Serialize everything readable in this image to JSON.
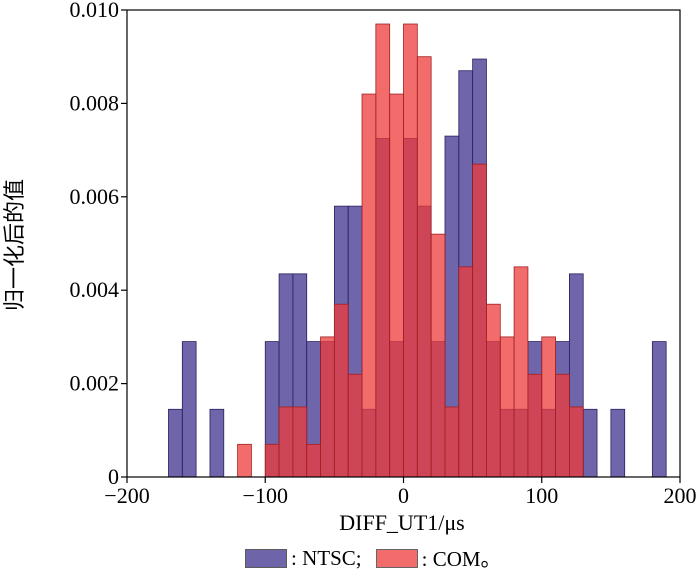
{
  "chart_data": {
    "type": "bar",
    "title": "",
    "xlabel": "DIFF_UT1/μs",
    "ylabel": "归一化后的值",
    "xlim": [
      -200,
      200
    ],
    "ylim": [
      0,
      0.01
    ],
    "xticks": [
      "−200",
      "−100",
      "0",
      "100",
      "200"
    ],
    "yticks": [
      "0",
      "0.002",
      "0.004",
      "0.006",
      "0.008",
      "0.010"
    ],
    "bin_width": 10,
    "series": [
      {
        "name": "NTSC",
        "color": "#4b3e96",
        "bins": [
          {
            "x0": -170,
            "value": 0.00145
          },
          {
            "x0": -160,
            "value": 0.0029
          },
          {
            "x0": -140,
            "value": 0.00145
          },
          {
            "x0": -100,
            "value": 0.0029
          },
          {
            "x0": -90,
            "value": 0.00435
          },
          {
            "x0": -80,
            "value": 0.00435
          },
          {
            "x0": -70,
            "value": 0.0029
          },
          {
            "x0": -60,
            "value": 0.0029
          },
          {
            "x0": -50,
            "value": 0.0058
          },
          {
            "x0": -40,
            "value": 0.0058
          },
          {
            "x0": -30,
            "value": 0.00145
          },
          {
            "x0": -20,
            "value": 0.00725
          },
          {
            "x0": -10,
            "value": 0.0029
          },
          {
            "x0": 0,
            "value": 0.00725
          },
          {
            "x0": 10,
            "value": 0.0058
          },
          {
            "x0": 20,
            "value": 0.0029
          },
          {
            "x0": 30,
            "value": 0.0073
          },
          {
            "x0": 40,
            "value": 0.0087
          },
          {
            "x0": 50,
            "value": 0.00895
          },
          {
            "x0": 60,
            "value": 0.0029
          },
          {
            "x0": 70,
            "value": 0.00145
          },
          {
            "x0": 80,
            "value": 0.00145
          },
          {
            "x0": 90,
            "value": 0.0029
          },
          {
            "x0": 100,
            "value": 0.00145
          },
          {
            "x0": 110,
            "value": 0.0029
          },
          {
            "x0": 120,
            "value": 0.00435
          },
          {
            "x0": 130,
            "value": 0.00145
          },
          {
            "x0": 150,
            "value": 0.00145
          },
          {
            "x0": 180,
            "value": 0.0029
          }
        ]
      },
      {
        "name": "COM",
        "color": "#ee3b3b",
        "bins": [
          {
            "x0": -120,
            "value": 0.0007
          },
          {
            "x0": -100,
            "value": 0.0007
          },
          {
            "x0": -90,
            "value": 0.0015
          },
          {
            "x0": -80,
            "value": 0.0015
          },
          {
            "x0": -70,
            "value": 0.0007
          },
          {
            "x0": -60,
            "value": 0.003
          },
          {
            "x0": -50,
            "value": 0.0037
          },
          {
            "x0": -40,
            "value": 0.0022
          },
          {
            "x0": -30,
            "value": 0.0082
          },
          {
            "x0": -20,
            "value": 0.0097
          },
          {
            "x0": -10,
            "value": 0.0082
          },
          {
            "x0": 0,
            "value": 0.0097
          },
          {
            "x0": 10,
            "value": 0.009
          },
          {
            "x0": 20,
            "value": 0.0052
          },
          {
            "x0": 30,
            "value": 0.0015
          },
          {
            "x0": 40,
            "value": 0.0045
          },
          {
            "x0": 50,
            "value": 0.0067
          },
          {
            "x0": 60,
            "value": 0.0037
          },
          {
            "x0": 70,
            "value": 0.003
          },
          {
            "x0": 80,
            "value": 0.0045
          },
          {
            "x0": 90,
            "value": 0.0022
          },
          {
            "x0": 100,
            "value": 0.003
          },
          {
            "x0": 110,
            "value": 0.0022
          },
          {
            "x0": 120,
            "value": 0.0015
          }
        ]
      }
    ],
    "legend": {
      "placement": "bottom",
      "items": [
        {
          "label": ": NTSC;",
          "color": "#4b3e96"
        },
        {
          "label": ": COM。",
          "color": "#ee3b3b"
        }
      ]
    }
  }
}
